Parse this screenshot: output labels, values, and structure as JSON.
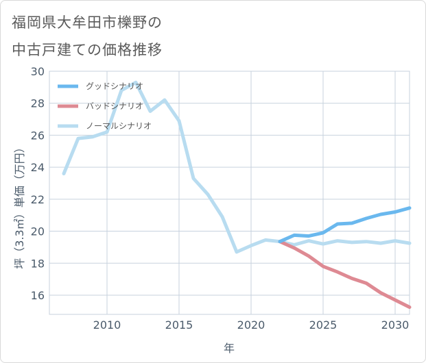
{
  "chart_data": {
    "type": "line",
    "title_lines": [
      "福岡県大牟田市櫟野の",
      "中古戸建ての価格推移"
    ],
    "xlabel": "年",
    "ylabel": "坪（3.3㎡）単価（万円）",
    "xlim": [
      2006,
      2031
    ],
    "ylim": [
      14.8,
      30
    ],
    "xticks": [
      2010,
      2015,
      2020,
      2025,
      2030
    ],
    "yticks": [
      16,
      18,
      20,
      22,
      24,
      26,
      28,
      30
    ],
    "legend_position": "top-left",
    "series": [
      {
        "name": "グッドシナリオ",
        "color": "#6ab8ee",
        "x": [
          2022,
          2023,
          2024,
          2025,
          2026,
          2027,
          2028,
          2029,
          2030,
          2031
        ],
        "values": [
          19.35,
          19.75,
          19.7,
          19.9,
          20.45,
          20.5,
          20.8,
          21.05,
          21.2,
          21.45
        ]
      },
      {
        "name": "バッドシナリオ",
        "color": "#de8a93",
        "x": [
          2022,
          2023,
          2024,
          2025,
          2026,
          2027,
          2028,
          2029,
          2030,
          2031
        ],
        "values": [
          19.35,
          18.95,
          18.45,
          17.8,
          17.45,
          17.05,
          16.75,
          16.15,
          15.7,
          15.25
        ]
      },
      {
        "name": "ノーマルシナリオ",
        "color": "#b8dcf0",
        "x": [
          2007,
          2008,
          2009,
          2010,
          2011,
          2012,
          2013,
          2014,
          2015,
          2016,
          2017,
          2018,
          2019,
          2020,
          2021,
          2022,
          2023,
          2024,
          2025,
          2026,
          2027,
          2028,
          2029,
          2030,
          2031
        ],
        "values": [
          23.6,
          25.8,
          25.9,
          26.2,
          28.8,
          29.3,
          27.5,
          28.2,
          26.9,
          23.3,
          22.3,
          20.9,
          18.7,
          19.1,
          19.45,
          19.35,
          19.15,
          19.4,
          19.2,
          19.4,
          19.3,
          19.35,
          19.25,
          19.4,
          19.25
        ]
      }
    ]
  }
}
